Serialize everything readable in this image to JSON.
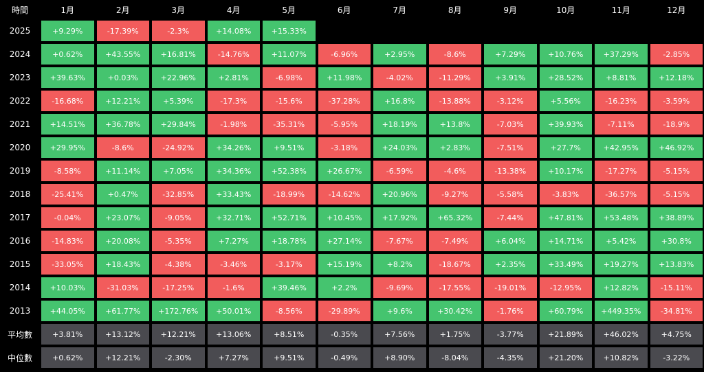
{
  "colors": {
    "positive": "#45c46f",
    "negative": "#f25c5c",
    "summary": "#4a4a4f",
    "background": "#000000",
    "text": "#ffffff"
  },
  "chart_data": {
    "type": "table",
    "corner_label": "時間",
    "months": [
      "1月",
      "2月",
      "3月",
      "4月",
      "5月",
      "6月",
      "7月",
      "8月",
      "9月",
      "10月",
      "11月",
      "12月"
    ],
    "rows": [
      {
        "year": "2025",
        "values": [
          "+9.29%",
          "-17.39%",
          "-2.3%",
          "+14.08%",
          "+15.33%",
          null,
          null,
          null,
          null,
          null,
          null,
          null
        ]
      },
      {
        "year": "2024",
        "values": [
          "+0.62%",
          "+43.55%",
          "+16.81%",
          "-14.76%",
          "+11.07%",
          "-6.96%",
          "+2.95%",
          "-8.6%",
          "+7.29%",
          "+10.76%",
          "+37.29%",
          "-2.85%"
        ]
      },
      {
        "year": "2023",
        "values": [
          "+39.63%",
          "+0.03%",
          "+22.96%",
          "+2.81%",
          "-6.98%",
          "+11.98%",
          "-4.02%",
          "-11.29%",
          "+3.91%",
          "+28.52%",
          "+8.81%",
          "+12.18%"
        ]
      },
      {
        "year": "2022",
        "values": [
          "-16.68%",
          "+12.21%",
          "+5.39%",
          "-17.3%",
          "-15.6%",
          "-37.28%",
          "+16.8%",
          "-13.88%",
          "-3.12%",
          "+5.56%",
          "-16.23%",
          "-3.59%"
        ]
      },
      {
        "year": "2021",
        "values": [
          "+14.51%",
          "+36.78%",
          "+29.84%",
          "-1.98%",
          "-35.31%",
          "-5.95%",
          "+18.19%",
          "+13.8%",
          "-7.03%",
          "+39.93%",
          "-7.11%",
          "-18.9%"
        ]
      },
      {
        "year": "2020",
        "values": [
          "+29.95%",
          "-8.6%",
          "-24.92%",
          "+34.26%",
          "+9.51%",
          "-3.18%",
          "+24.03%",
          "+2.83%",
          "-7.51%",
          "+27.7%",
          "+42.95%",
          "+46.92%"
        ]
      },
      {
        "year": "2019",
        "values": [
          "-8.58%",
          "+11.14%",
          "+7.05%",
          "+34.36%",
          "+52.38%",
          "+26.67%",
          "-6.59%",
          "-4.6%",
          "-13.38%",
          "+10.17%",
          "-17.27%",
          "-5.15%"
        ]
      },
      {
        "year": "2018",
        "values": [
          "-25.41%",
          "+0.47%",
          "-32.85%",
          "+33.43%",
          "-18.99%",
          "-14.62%",
          "+20.96%",
          "-9.27%",
          "-5.58%",
          "-3.83%",
          "-36.57%",
          "-5.15%"
        ]
      },
      {
        "year": "2017",
        "values": [
          "-0.04%",
          "+23.07%",
          "-9.05%",
          "+32.71%",
          "+52.71%",
          "+10.45%",
          "+17.92%",
          "+65.32%",
          "-7.44%",
          "+47.81%",
          "+53.48%",
          "+38.89%"
        ]
      },
      {
        "year": "2016",
        "values": [
          "-14.83%",
          "+20.08%",
          "-5.35%",
          "+7.27%",
          "+18.78%",
          "+27.14%",
          "-7.67%",
          "-7.49%",
          "+6.04%",
          "+14.71%",
          "+5.42%",
          "+30.8%"
        ]
      },
      {
        "year": "2015",
        "values": [
          "-33.05%",
          "+18.43%",
          "-4.38%",
          "-3.46%",
          "-3.17%",
          "+15.19%",
          "+8.2%",
          "-18.67%",
          "+2.35%",
          "+33.49%",
          "+19.27%",
          "+13.83%"
        ]
      },
      {
        "year": "2014",
        "values": [
          "+10.03%",
          "-31.03%",
          "-17.25%",
          "-1.6%",
          "+39.46%",
          "+2.2%",
          "-9.69%",
          "-17.55%",
          "-19.01%",
          "-12.95%",
          "+12.82%",
          "-15.11%"
        ]
      },
      {
        "year": "2013",
        "values": [
          "+44.05%",
          "+61.77%",
          "+172.76%",
          "+50.01%",
          "-8.56%",
          "-29.89%",
          "+9.6%",
          "+30.42%",
          "-1.76%",
          "+60.79%",
          "+449.35%",
          "-34.81%"
        ]
      }
    ],
    "summary_rows": [
      {
        "label": "平均數",
        "values": [
          "+3.81%",
          "+13.12%",
          "+12.21%",
          "+13.06%",
          "+8.51%",
          "-0.35%",
          "+7.56%",
          "+1.75%",
          "-3.77%",
          "+21.89%",
          "+46.02%",
          "+4.75%"
        ]
      },
      {
        "label": "中位數",
        "values": [
          "+0.62%",
          "+12.21%",
          "-2.30%",
          "+7.27%",
          "+9.51%",
          "-0.49%",
          "+8.90%",
          "-8.04%",
          "-4.35%",
          "+21.20%",
          "+10.82%",
          "-3.22%"
        ]
      }
    ]
  }
}
